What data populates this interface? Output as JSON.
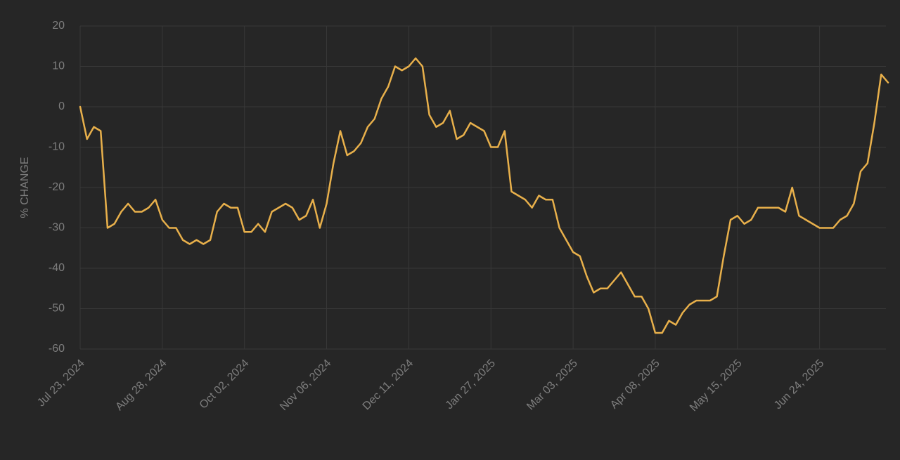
{
  "chart_data": {
    "type": "line",
    "y_label": "% CHANGE",
    "categories": [
      "Jul 23, 2024",
      null,
      null,
      null,
      null,
      null,
      null,
      null,
      null,
      null,
      null,
      null,
      "Aug 28, 2024",
      null,
      null,
      null,
      null,
      null,
      null,
      null,
      null,
      null,
      null,
      null,
      "Oct 02, 2024",
      null,
      null,
      null,
      null,
      null,
      null,
      null,
      null,
      null,
      null,
      null,
      "Nov 06, 2024",
      null,
      null,
      null,
      null,
      null,
      null,
      null,
      null,
      null,
      null,
      null,
      "Dec 11, 2024",
      null,
      null,
      null,
      null,
      null,
      null,
      null,
      null,
      null,
      null,
      null,
      "Jan 27, 2025",
      null,
      null,
      null,
      null,
      null,
      null,
      null,
      null,
      null,
      null,
      null,
      "Mar 03, 2025",
      null,
      null,
      null,
      null,
      null,
      null,
      null,
      null,
      null,
      null,
      null,
      "Apr 08, 2025",
      null,
      null,
      null,
      null,
      null,
      null,
      null,
      null,
      null,
      null,
      null,
      "May 15, 2025",
      null,
      null,
      null,
      null,
      null,
      null,
      null,
      null,
      null,
      null,
      null,
      "Jun 24, 2025",
      null,
      null,
      null,
      null,
      null,
      null,
      null,
      null,
      null,
      null
    ],
    "values": [
      0,
      -8,
      -5,
      -6,
      -30,
      -29,
      -26,
      -24,
      -26,
      -26,
      -25,
      -23,
      -28,
      -30,
      -30,
      -33,
      -34,
      -33,
      -34,
      -33,
      -26,
      -24,
      -25,
      -25,
      -31,
      -31,
      -29,
      -31,
      -26,
      -25,
      -24,
      -25,
      -28,
      -27,
      -23,
      -30,
      -24,
      -14,
      -6,
      -12,
      -11,
      -9,
      -5,
      -3,
      2,
      5,
      10,
      9,
      10,
      12,
      10,
      -2,
      -5,
      -4,
      -1,
      -8,
      -7,
      -4,
      -5,
      -6,
      -10,
      -10,
      -6,
      -21,
      -22,
      -23,
      -25,
      -22,
      -23,
      -23,
      -30,
      -33,
      -36,
      -37,
      -42,
      -46,
      -45,
      -45,
      -43,
      -41,
      -44,
      -47,
      -47,
      -50,
      -56,
      -56,
      -53,
      -54,
      -51,
      -49,
      -48,
      -48,
      -48,
      -47,
      -37,
      -28,
      -27,
      -29,
      -28,
      -25,
      -25,
      -25,
      -25,
      -26,
      -20,
      -27,
      -28,
      -29,
      -30,
      -30,
      -30,
      -28,
      -27,
      -24,
      -16,
      -14,
      -4,
      8,
      6
    ],
    "color": "#e8b04b",
    "ylim": [
      -60,
      20
    ],
    "yticks": [
      -60,
      -50,
      -40,
      -30,
      -20,
      -10,
      0,
      10,
      20
    ],
    "grid": true
  }
}
